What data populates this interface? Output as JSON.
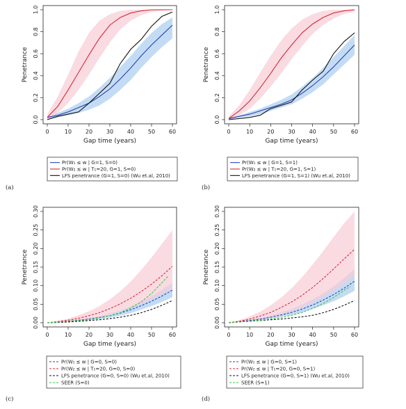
{
  "chart_data": [
    {
      "panel_label": "(a)",
      "type": "line",
      "xlabel": "Gap time (years)",
      "ylabel": "Penetrance",
      "xlim": [
        0,
        60
      ],
      "ylim": [
        0,
        1
      ],
      "xticks": [
        0,
        10,
        20,
        30,
        40,
        50,
        60
      ],
      "yticks": [
        0.0,
        0.2,
        0.4,
        0.6,
        0.8,
        1.0
      ],
      "legend_position": "bottom",
      "series": [
        {
          "name": "Pr(W₁ ≤ w | G=1, S=0)",
          "color": "#2b3fb0",
          "style": "solid",
          "band_color": "#a9cdf0",
          "x": [
            0,
            5,
            10,
            15,
            20,
            25,
            30,
            35,
            40,
            45,
            50,
            55,
            60
          ],
          "y": [
            0.02,
            0.04,
            0.07,
            0.11,
            0.15,
            0.21,
            0.28,
            0.37,
            0.47,
            0.58,
            0.68,
            0.77,
            0.86
          ],
          "lower": [
            0.0,
            0.02,
            0.04,
            0.06,
            0.09,
            0.13,
            0.19,
            0.27,
            0.36,
            0.47,
            0.57,
            0.66,
            0.74
          ],
          "upper": [
            0.03,
            0.06,
            0.1,
            0.15,
            0.21,
            0.29,
            0.38,
            0.48,
            0.58,
            0.69,
            0.79,
            0.87,
            0.93
          ]
        },
        {
          "name": "Pr(W₂ ≤ w | T₁=20, G=1, S=0)",
          "color": "#d42a35",
          "style": "solid",
          "band_color": "#f8ccd6",
          "x": [
            0,
            5,
            10,
            15,
            20,
            25,
            30,
            35,
            40,
            45,
            50,
            55,
            60
          ],
          "y": [
            0.02,
            0.12,
            0.27,
            0.43,
            0.59,
            0.74,
            0.86,
            0.93,
            0.97,
            0.99,
            1.0,
            1.0,
            1.0
          ],
          "lower": [
            0.0,
            0.06,
            0.15,
            0.27,
            0.41,
            0.56,
            0.7,
            0.82,
            0.9,
            0.95,
            0.98,
            0.99,
            1.0
          ],
          "upper": [
            0.05,
            0.21,
            0.41,
            0.62,
            0.79,
            0.9,
            0.96,
            0.99,
            1.0,
            1.0,
            1.0,
            1.0,
            1.0
          ]
        },
        {
          "name": "LFS penetrance (G=1, S=0) (Wu et.al, 2010)",
          "color": "#111111",
          "style": "solid",
          "x": [
            0,
            5,
            10,
            15,
            20,
            25,
            30,
            35,
            40,
            45,
            50,
            55,
            60
          ],
          "y": [
            0.0,
            0.03,
            0.05,
            0.07,
            0.15,
            0.24,
            0.33,
            0.51,
            0.64,
            0.73,
            0.85,
            0.94,
            0.98
          ]
        }
      ]
    },
    {
      "panel_label": "(b)",
      "type": "line",
      "xlabel": "Gap time (years)",
      "ylabel": "Penetrance",
      "xlim": [
        0,
        60
      ],
      "ylim": [
        0,
        1
      ],
      "xticks": [
        0,
        10,
        20,
        30,
        40,
        50,
        60
      ],
      "yticks": [
        0.0,
        0.2,
        0.4,
        0.6,
        0.8,
        1.0
      ],
      "legend_position": "bottom",
      "series": [
        {
          "name": "Pr(W₁ ≤ w | G=1, S=1)",
          "color": "#2b3fb0",
          "style": "solid",
          "band_color": "#a9cdf0",
          "x": [
            0,
            5,
            10,
            15,
            20,
            25,
            30,
            35,
            40,
            45,
            50,
            55,
            60
          ],
          "y": [
            0.01,
            0.03,
            0.05,
            0.08,
            0.11,
            0.14,
            0.18,
            0.24,
            0.31,
            0.39,
            0.48,
            0.58,
            0.68
          ],
          "lower": [
            0.0,
            0.02,
            0.03,
            0.05,
            0.08,
            0.11,
            0.14,
            0.19,
            0.25,
            0.32,
            0.41,
            0.5,
            0.59
          ],
          "upper": [
            0.02,
            0.04,
            0.07,
            0.1,
            0.14,
            0.18,
            0.23,
            0.3,
            0.38,
            0.47,
            0.57,
            0.67,
            0.77
          ]
        },
        {
          "name": "Pr(W₂ ≤ w | T₁=20, G=1, S=1)",
          "color": "#d42a35",
          "style": "solid",
          "band_color": "#f8ccd6",
          "x": [
            0,
            5,
            10,
            15,
            20,
            25,
            30,
            35,
            40,
            45,
            50,
            55,
            60
          ],
          "y": [
            0.01,
            0.08,
            0.17,
            0.29,
            0.42,
            0.56,
            0.68,
            0.79,
            0.87,
            0.93,
            0.97,
            0.99,
            1.0
          ],
          "lower": [
            0.0,
            0.04,
            0.1,
            0.19,
            0.3,
            0.42,
            0.55,
            0.67,
            0.78,
            0.86,
            0.92,
            0.96,
            0.98
          ],
          "upper": [
            0.03,
            0.13,
            0.27,
            0.43,
            0.58,
            0.72,
            0.83,
            0.91,
            0.96,
            0.99,
            1.0,
            1.0,
            1.0
          ]
        },
        {
          "name": "LFS penetrance (G=1, S=1) (Wu et.al, 2010)",
          "color": "#111111",
          "style": "solid",
          "x": [
            0,
            5,
            10,
            15,
            20,
            25,
            30,
            35,
            40,
            45,
            50,
            55,
            60
          ],
          "y": [
            0.0,
            0.01,
            0.02,
            0.04,
            0.1,
            0.13,
            0.16,
            0.27,
            0.36,
            0.44,
            0.6,
            0.71,
            0.79
          ]
        }
      ]
    },
    {
      "panel_label": "(c)",
      "type": "line",
      "xlabel": "Gap time (years)",
      "ylabel": "Penetrance",
      "xlim": [
        0,
        60
      ],
      "ylim": [
        0,
        0.3
      ],
      "xticks": [
        0,
        10,
        20,
        30,
        40,
        50,
        60
      ],
      "yticks": [
        0.0,
        0.05,
        0.1,
        0.15,
        0.2,
        0.25,
        0.3
      ],
      "legend_position": "bottom",
      "series": [
        {
          "name": "Pr(W₁ ≤ w | G=0, S=0)",
          "color": "#2b3fb0",
          "style": "dashed",
          "band_color": "#a9cdf0",
          "x": [
            0,
            5,
            10,
            15,
            20,
            25,
            30,
            35,
            40,
            45,
            50,
            55,
            60
          ],
          "y": [
            0.0,
            0.002,
            0.004,
            0.007,
            0.01,
            0.014,
            0.019,
            0.026,
            0.035,
            0.046,
            0.058,
            0.072,
            0.088
          ],
          "lower": [
            0.0,
            0.001,
            0.003,
            0.005,
            0.007,
            0.01,
            0.014,
            0.019,
            0.026,
            0.035,
            0.045,
            0.056,
            0.069
          ],
          "upper": [
            0.0,
            0.003,
            0.006,
            0.009,
            0.013,
            0.018,
            0.025,
            0.033,
            0.044,
            0.057,
            0.072,
            0.089,
            0.108
          ]
        },
        {
          "name": "Pr(W₂ ≤ w | T₁=20, G=0, S=0)",
          "color": "#d42a35",
          "style": "dashed",
          "band_color": "#f8ccd6",
          "x": [
            0,
            5,
            10,
            15,
            20,
            25,
            30,
            35,
            40,
            45,
            50,
            55,
            60
          ],
          "y": [
            0.0,
            0.003,
            0.007,
            0.012,
            0.019,
            0.027,
            0.038,
            0.051,
            0.066,
            0.084,
            0.104,
            0.127,
            0.152
          ],
          "lower": [
            0.0,
            0.001,
            0.003,
            0.006,
            0.01,
            0.015,
            0.022,
            0.03,
            0.04,
            0.051,
            0.063,
            0.077,
            0.092
          ],
          "upper": [
            0.0,
            0.005,
            0.011,
            0.02,
            0.031,
            0.045,
            0.063,
            0.085,
            0.111,
            0.142,
            0.176,
            0.213,
            0.25
          ]
        },
        {
          "name": "LFS penetrance (G=0, S=0) (Wu et.al, 2010)",
          "color": "#111111",
          "style": "dashed",
          "x": [
            0,
            5,
            10,
            15,
            20,
            25,
            30,
            35,
            40,
            45,
            50,
            55,
            60
          ],
          "y": [
            0.0,
            0.001,
            0.002,
            0.004,
            0.006,
            0.008,
            0.011,
            0.015,
            0.02,
            0.027,
            0.036,
            0.047,
            0.06
          ]
        },
        {
          "name": "SEER (S=0)",
          "color": "#3ec43e",
          "style": "dashed",
          "x": [
            0,
            5,
            10,
            15,
            20,
            25,
            30,
            35,
            40,
            45,
            50,
            55,
            58
          ],
          "y": [
            0.0,
            0.002,
            0.004,
            0.006,
            0.009,
            0.013,
            0.019,
            0.027,
            0.04,
            0.056,
            0.079,
            0.108,
            0.126
          ]
        }
      ]
    },
    {
      "panel_label": "(d)",
      "type": "line",
      "xlabel": "Gap time (years)",
      "ylabel": "Penetrance",
      "xlim": [
        0,
        60
      ],
      "ylim": [
        0,
        0.3
      ],
      "xticks": [
        0,
        10,
        20,
        30,
        40,
        50,
        60
      ],
      "yticks": [
        0.0,
        0.05,
        0.1,
        0.15,
        0.2,
        0.25,
        0.3
      ],
      "legend_position": "bottom",
      "series": [
        {
          "name": "Pr(W₁ ≤ w | G=0, S=1)",
          "color": "#2b3fb0",
          "style": "dashed",
          "band_color": "#a9cdf0",
          "x": [
            0,
            5,
            10,
            15,
            20,
            25,
            30,
            35,
            40,
            45,
            50,
            55,
            60
          ],
          "y": [
            0.0,
            0.003,
            0.006,
            0.01,
            0.015,
            0.021,
            0.028,
            0.037,
            0.048,
            0.061,
            0.076,
            0.093,
            0.112
          ],
          "lower": [
            0.0,
            0.002,
            0.004,
            0.007,
            0.011,
            0.016,
            0.021,
            0.028,
            0.037,
            0.047,
            0.058,
            0.071,
            0.086
          ],
          "upper": [
            0.0,
            0.004,
            0.008,
            0.013,
            0.02,
            0.028,
            0.037,
            0.049,
            0.063,
            0.079,
            0.098,
            0.12,
            0.145
          ]
        },
        {
          "name": "Pr(W₂ ≤ w | T₁=20, G=0, S=1)",
          "color": "#d42a35",
          "style": "dashed",
          "band_color": "#f8ccd6",
          "x": [
            0,
            5,
            10,
            15,
            20,
            25,
            30,
            35,
            40,
            45,
            50,
            55,
            60
          ],
          "y": [
            0.0,
            0.004,
            0.01,
            0.018,
            0.028,
            0.041,
            0.056,
            0.074,
            0.095,
            0.119,
            0.145,
            0.172,
            0.198
          ],
          "lower": [
            0.0,
            0.002,
            0.005,
            0.009,
            0.014,
            0.021,
            0.03,
            0.041,
            0.054,
            0.069,
            0.086,
            0.105,
            0.125
          ],
          "upper": [
            0.0,
            0.007,
            0.017,
            0.03,
            0.047,
            0.068,
            0.093,
            0.123,
            0.157,
            0.193,
            0.231,
            0.268,
            0.3
          ]
        },
        {
          "name": "LFS penetrance (G=0, S=1) (Wu et.al, 2010)",
          "color": "#111111",
          "style": "dashed",
          "x": [
            0,
            5,
            10,
            15,
            20,
            25,
            30,
            35,
            40,
            45,
            50,
            55,
            60
          ],
          "y": [
            0.0,
            0.002,
            0.004,
            0.006,
            0.008,
            0.01,
            0.013,
            0.016,
            0.02,
            0.027,
            0.036,
            0.047,
            0.06
          ]
        },
        {
          "name": "SEER (S=1)",
          "color": "#3ec43e",
          "style": "dashed",
          "x": [
            0,
            5,
            10,
            15,
            20,
            25,
            30,
            35,
            40,
            45,
            50,
            55,
            58
          ],
          "y": [
            0.0,
            0.002,
            0.004,
            0.007,
            0.01,
            0.014,
            0.02,
            0.028,
            0.039,
            0.052,
            0.068,
            0.087,
            0.098
          ]
        }
      ]
    }
  ]
}
